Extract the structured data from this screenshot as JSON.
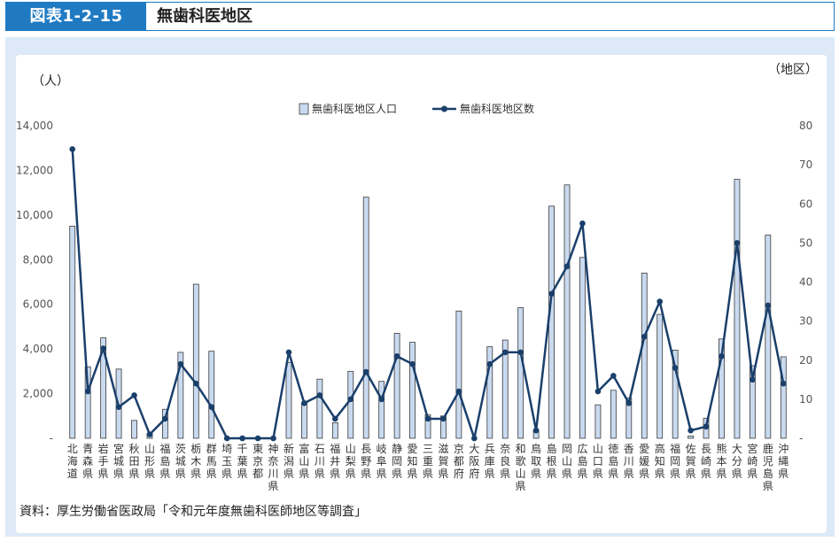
{
  "header": {
    "figure_label": "図表1-2-15",
    "title": "無歯科医地区"
  },
  "source": "資料：厚生労働省医政局「令和元年度無歯科医師地区等調査」",
  "colors": {
    "accent": "#1f7ac2",
    "bar_fill": "#c9daf0",
    "bar_stroke": "#3a3a3a",
    "line": "#1a3f6b"
  },
  "chart_data": {
    "type": "bar",
    "title": "",
    "left_unit": "（人）",
    "right_unit": "（地区）",
    "ylim": [
      0,
      14000
    ],
    "ylim_right": [
      0,
      80
    ],
    "yticks": [
      "-",
      "2,000",
      "4,000",
      "6,000",
      "8,000",
      "10,000",
      "12,000",
      "14,000"
    ],
    "yticks_right": [
      "-",
      "10",
      "20",
      "30",
      "40",
      "50",
      "60",
      "70",
      "80"
    ],
    "grid": false,
    "legend_position": "top-center",
    "categories": [
      "北海道",
      "青森県",
      "岩手県",
      "宮城県",
      "秋田県",
      "山形県",
      "福島県",
      "茨城県",
      "栃木県",
      "群馬県",
      "埼玉県",
      "千葉県",
      "東京都",
      "神奈川県",
      "新潟県",
      "富山県",
      "石川県",
      "福井県",
      "山梨県",
      "長野県",
      "岐阜県",
      "静岡県",
      "愛知県",
      "三重県",
      "滋賀県",
      "京都府",
      "大阪府",
      "兵庫県",
      "奈良県",
      "和歌山県",
      "鳥取県",
      "島根県",
      "岡山県",
      "広島県",
      "山口県",
      "徳島県",
      "香川県",
      "愛媛県",
      "高知県",
      "福岡県",
      "佐賀県",
      "長崎県",
      "熊本県",
      "大分県",
      "宮崎県",
      "鹿児島県",
      "沖縄県"
    ],
    "series": [
      {
        "name": "無歯科医地区人口",
        "type": "bar",
        "axis": "left",
        "values": [
          9500,
          3200,
          4500,
          3100,
          800,
          200,
          1300,
          3850,
          6900,
          3900,
          0,
          0,
          0,
          0,
          3400,
          1600,
          2650,
          700,
          3000,
          10800,
          2550,
          4700,
          4300,
          1050,
          1000,
          5700,
          0,
          4100,
          4400,
          5850,
          400,
          10400,
          11350,
          8100,
          1500,
          2150,
          1800,
          7400,
          5550,
          3950,
          100,
          900,
          4450,
          11600,
          3250,
          9100,
          3650
        ]
      },
      {
        "name": "無歯科医地区数",
        "type": "line",
        "axis": "right",
        "values": [
          74,
          12,
          23,
          8,
          11,
          1,
          5,
          19,
          14,
          8,
          0,
          0,
          0,
          0,
          22,
          9,
          11,
          5,
          10,
          17,
          10,
          21,
          19,
          5,
          5,
          12,
          0,
          19,
          22,
          22,
          2,
          37,
          44,
          55,
          12,
          16,
          9,
          26,
          35,
          18,
          2,
          3,
          21,
          50,
          15,
          34,
          14
        ]
      }
    ]
  }
}
